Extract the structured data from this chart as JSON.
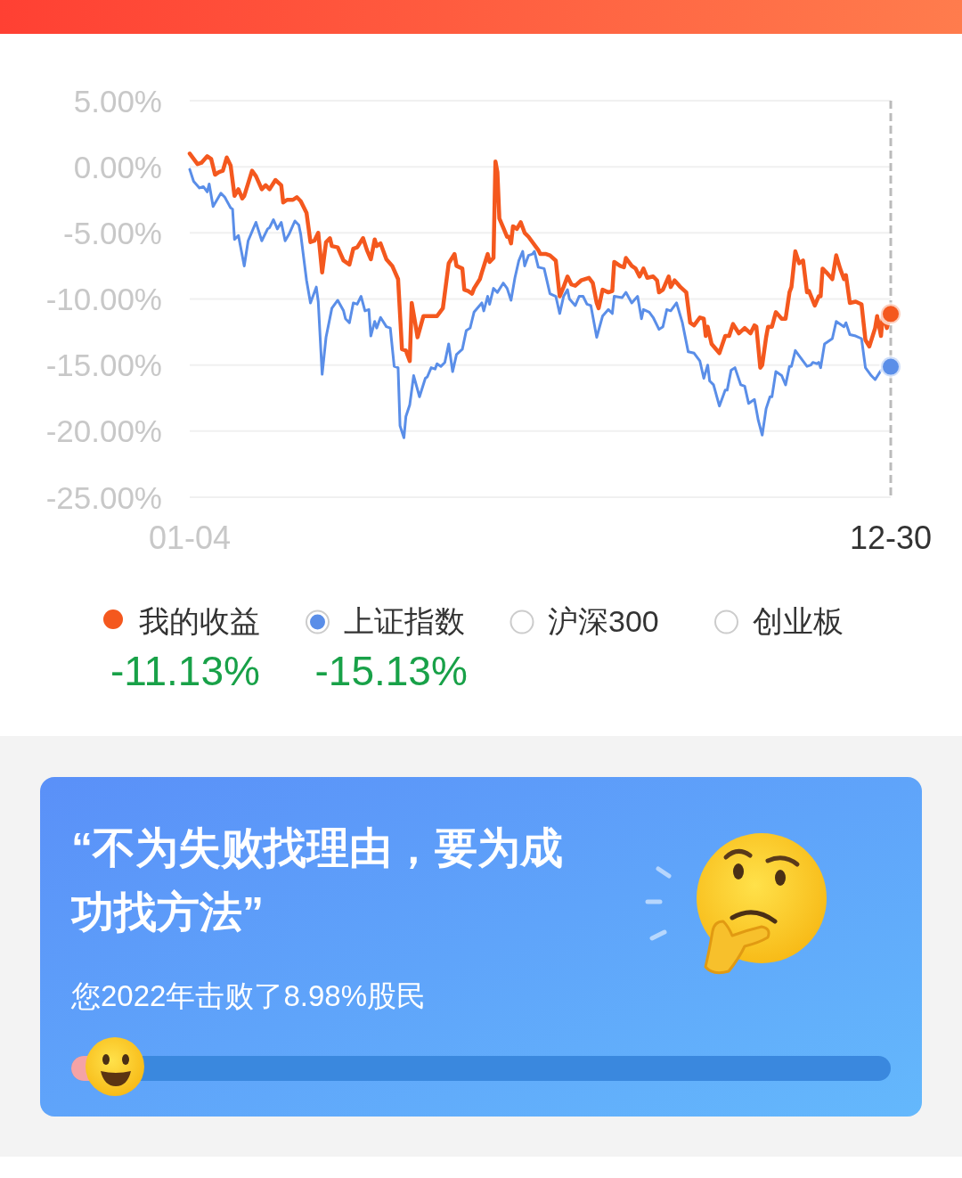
{
  "chart_data": {
    "type": "line",
    "xlim": [
      "--01-04",
      "--12-30"
    ],
    "xticks": [
      {
        "value": "--01-04",
        "label": "01-04"
      },
      {
        "value": "--12-30",
        "label": "12-30"
      }
    ],
    "ylim": [
      -25,
      5
    ],
    "yticks": [
      {
        "value": 5,
        "label": "5.00%"
      },
      {
        "value": 0,
        "label": "0.00%"
      },
      {
        "value": -5,
        "label": "-5.00%"
      },
      {
        "value": -10,
        "label": "-10.00%"
      },
      {
        "value": -15,
        "label": "-15.00%"
      },
      {
        "value": -20,
        "label": "-20.00%"
      },
      {
        "value": -25,
        "label": "-25.00%"
      }
    ],
    "grid": "y",
    "legend": "bottom",
    "ref_lines": [
      {
        "axis": "x",
        "value": "--12-30",
        "line_style": "dashed",
        "color": "#bbbbbb"
      }
    ],
    "series": [
      {
        "name": "我的收益",
        "color": "#f4581e",
        "x": [
          "--01-04",
          "--01-08",
          "--01-10",
          "--01-13",
          "--01-15",
          "--01-17",
          "--01-19",
          "--01-21",
          "--01-23",
          "--01-25",
          "--01-27",
          "--01-29",
          "--01-31",
          "--02-01",
          "--02-05",
          "--02-07",
          "--02-10",
          "--02-12",
          "--02-14",
          "--02-17",
          "--02-20",
          "--02-21",
          "--02-23",
          "--02-26",
          "--02-28",
          "--03-02",
          "--03-05",
          "--03-07",
          "--03-09",
          "--03-11",
          "--03-13",
          "--03-15",
          "--03-17",
          "--03-18",
          "--03-21",
          "--03-24",
          "--03-27",
          "--03-29",
          "--03-31",
          "--04-03",
          "--04-05",
          "--04-07",
          "--04-09",
          "--04-10",
          "--04-12",
          "--04-15",
          "--04-18",
          "--04-21",
          "--04-23",
          "--04-25",
          "--04-27",
          "--04-28",
          "--04-30",
          "--05-01",
          "--05-04",
          "--05-06",
          "--05-11",
          "--05-14",
          "--05-17",
          "--05-20",
          "--05-21",
          "--05-24",
          "--05-25",
          "--05-27",
          "--05-29",
          "--05-30",
          "--06-02",
          "--06-03",
          "--06-06",
          "--06-07",
          "--06-09",
          "--06-10",
          "--06-11",
          "--06-12",
          "--06-14",
          "--06-16",
          "--06-17",
          "--06-18",
          "--06-19",
          "--06-21",
          "--06-23",
          "--06-25",
          "--06-27",
          "--06-29",
          "--07-02",
          "--07-03",
          "--07-06",
          "--07-08",
          "--07-11",
          "--07-13",
          "--07-15",
          "--07-17",
          "--07-19",
          "--07-21",
          "--07-24",
          "--07-28",
          "--07-30",
          "--08-01",
          "--08-02",
          "--08-04",
          "--08-07",
          "--08-09",
          "--08-10",
          "--08-13",
          "--08-15",
          "--08-16",
          "--08-19",
          "--08-21",
          "--08-23",
          "--08-25",
          "--08-27",
          "--08-30",
          "--09-01",
          "--09-02",
          "--09-04",
          "--09-07",
          "--09-08",
          "--09-10",
          "--09-13",
          "--09-16",
          "--09-18",
          "--09-20",
          "--09-23",
          "--09-25",
          "--09-26",
          "--09-27",
          "--09-29",
          "--10-03",
          "--10-06",
          "--10-08",
          "--10-10",
          "--10-13",
          "--10-16",
          "--10-19",
          "--10-21",
          "--10-22",
          "--10-24",
          "--10-25",
          "--10-27",
          "--10-28",
          "--10-30",
          "--11-01",
          "--11-04",
          "--11-06",
          "--11-08",
          "--11-09",
          "--11-11",
          "--11-13",
          "--11-15",
          "--11-17",
          "--11-18",
          "--11-21",
          "--11-23",
          "--11-24",
          "--11-25",
          "--11-27",
          "--11-30",
          "--12-02",
          "--12-04",
          "--12-06",
          "--12-07",
          "--12-09",
          "--12-12",
          "--12-15",
          "--12-17",
          "--12-19",
          "--12-22",
          "--12-23",
          "--12-25",
          "--12-26",
          "--12-28",
          "--12-30"
        ],
        "values": [
          1.0,
          0.2,
          0.3,
          0.8,
          0.6,
          -0.6,
          -0.4,
          -0.3,
          0.7,
          0.1,
          -2.2,
          -1.7,
          -2.4,
          -2.2,
          -0.3,
          -0.7,
          -1.7,
          -1.4,
          -1.7,
          -1.0,
          -1.4,
          -2.7,
          -2.5,
          -2.5,
          -2.3,
          -2.6,
          -3.5,
          -5.7,
          -5.6,
          -5.0,
          -8.0,
          -5.7,
          -5.4,
          -6.0,
          -6.1,
          -7.1,
          -7.4,
          -6.2,
          -6.1,
          -5.4,
          -6.3,
          -7.0,
          -5.5,
          -6.0,
          -5.8,
          -7.0,
          -7.5,
          -8.5,
          -13.8,
          -13.9,
          -14.7,
          -10.3,
          -12.0,
          -12.9,
          -11.3,
          -11.3,
          -11.3,
          -10.7,
          -7.3,
          -6.6,
          -7.5,
          -7.7,
          -9.3,
          -9.4,
          -9.6,
          -9.2,
          -8.5,
          -8.0,
          -6.6,
          -7.2,
          -6.9,
          0.4,
          -0.4,
          -3.9,
          -4.6,
          -5.3,
          -5.3,
          -5.8,
          -4.5,
          -4.7,
          -4.2,
          -5.0,
          -5.3,
          -5.7,
          -6.3,
          -6.6,
          -6.6,
          -6.7,
          -7.1,
          -9.8,
          -9.1,
          -8.3,
          -8.9,
          -9.0,
          -8.6,
          -8.4,
          -8.8,
          -10.3,
          -10.7,
          -9.3,
          -9.5,
          -9.4,
          -7.2,
          -7.5,
          -7.6,
          -6.9,
          -7.5,
          -7.7,
          -8.3,
          -7.7,
          -8.4,
          -8.3,
          -8.6,
          -9.5,
          -9.3,
          -8.3,
          -9.1,
          -8.6,
          -9.1,
          -9.5,
          -11.8,
          -12.0,
          -11.4,
          -11.5,
          -12.8,
          -12.1,
          -13.4,
          -14.1,
          -12.8,
          -12.8,
          -11.9,
          -12.6,
          -12.2,
          -12.6,
          -12.0,
          -12.1,
          -15.2,
          -15.0,
          -12.9,
          -12.1,
          -12.1,
          -11.0,
          -11.5,
          -11.5,
          -9.5,
          -9.1,
          -6.4,
          -7.3,
          -7.1,
          -9.5,
          -9.4,
          -10.5,
          -9.8,
          -9.8,
          -7.7,
          -8.0,
          -8.5,
          -6.7,
          -7.7,
          -8.5,
          -8.2,
          -10.3,
          -10.2,
          -10.4,
          -13.1,
          -13.6,
          -12.2,
          -11.3,
          -12.8,
          -11.1,
          -12.2,
          -11.13
        ]
      },
      {
        "name": "上证指数",
        "color": "#5a8ee8",
        "x": [
          "--01-04",
          "--01-06",
          "--01-09",
          "--01-11",
          "--01-13",
          "--01-14",
          "--01-16",
          "--01-20",
          "--01-22",
          "--01-25",
          "--01-26",
          "--01-27",
          "--01-29",
          "--02-01",
          "--02-03",
          "--02-07",
          "--02-10",
          "--02-13",
          "--02-14",
          "--02-16",
          "--02-18",
          "--02-20",
          "--02-22",
          "--02-24",
          "--02-27",
          "--03-01",
          "--03-02",
          "--03-05",
          "--03-07",
          "--03-10",
          "--03-11",
          "--03-13",
          "--03-15",
          "--03-18",
          "--03-21",
          "--03-24",
          "--03-25",
          "--03-27",
          "--03-29",
          "--03-31",
          "--04-02",
          "--04-04",
          "--04-06",
          "--04-07",
          "--04-09",
          "--04-10",
          "--04-12",
          "--04-15",
          "--04-17",
          "--04-19",
          "--04-21",
          "--04-22",
          "--04-24",
          "--04-25",
          "--04-27",
          "--04-29",
          "--05-02",
          "--05-05",
          "--05-06",
          "--05-08",
          "--05-10",
          "--05-11",
          "--05-13",
          "--05-15",
          "--05-17",
          "--05-19",
          "--05-21",
          "--05-24",
          "--05-26",
          "--05-28",
          "--05-30",
          "--06-03",
          "--06-04",
          "--06-06",
          "--06-07",
          "--06-09",
          "--06-11",
          "--06-14",
          "--06-16",
          "--06-18",
          "--06-20",
          "--06-22",
          "--06-24",
          "--06-25",
          "--06-27",
          "--06-29",
          "--06-30",
          "--07-02",
          "--07-05",
          "--07-08",
          "--07-11",
          "--07-13",
          "--07-15",
          "--07-17",
          "--07-18",
          "--07-21",
          "--07-23",
          "--07-25",
          "--07-27",
          "--07-29",
          "--08-01",
          "--08-04",
          "--08-07",
          "--08-09",
          "--08-10",
          "--08-14",
          "--08-16",
          "--08-19",
          "--08-22",
          "--08-24",
          "--08-25",
          "--08-28",
          "--08-30",
          "--09-02",
          "--09-04",
          "--09-06",
          "--09-08",
          "--09-11",
          "--09-14",
          "--09-17",
          "--09-20",
          "--09-23",
          "--09-25",
          "--09-27",
          "--09-28",
          "--09-30",
          "--10-03",
          "--10-06",
          "--10-07",
          "--10-09",
          "--10-11",
          "--10-14",
          "--10-16",
          "--10-18",
          "--10-21",
          "--10-23",
          "--10-25",
          "--10-27",
          "--10-29",
          "--10-30",
          "--11-01",
          "--11-04",
          "--11-06",
          "--11-08",
          "--11-09",
          "--11-11",
          "--11-13",
          "--11-17",
          "--11-19",
          "--11-20",
          "--11-22",
          "--11-23",
          "--11-24",
          "--11-26",
          "--11-28",
          "--11-30",
          "--12-02",
          "--12-04",
          "--12-06",
          "--12-07",
          "--12-09",
          "--12-12",
          "--12-15",
          "--12-17",
          "--12-20",
          "--12-22",
          "--12-25",
          "--12-30"
        ],
        "values": [
          -0.2,
          -1.1,
          -1.6,
          -1.5,
          -1.9,
          -1.3,
          -3.0,
          -2.0,
          -2.3,
          -3.1,
          -3.2,
          -5.5,
          -5.2,
          -7.5,
          -5.6,
          -4.2,
          -5.6,
          -4.7,
          -4.6,
          -4.0,
          -4.7,
          -4.2,
          -5.6,
          -5.1,
          -4.1,
          -4.4,
          -5.1,
          -8.6,
          -10.3,
          -9.1,
          -10.2,
          -15.7,
          -12.9,
          -10.7,
          -10.1,
          -10.9,
          -11.5,
          -11.8,
          -10.3,
          -10.4,
          -9.8,
          -10.9,
          -10.8,
          -12.8,
          -11.7,
          -12.2,
          -11.4,
          -12.1,
          -12.2,
          -15.1,
          -15.2,
          -19.6,
          -20.5,
          -18.9,
          -18.0,
          -15.8,
          -17.4,
          -16.0,
          -15.9,
          -15.2,
          -15.3,
          -14.9,
          -15.1,
          -14.8,
          -13.4,
          -15.5,
          -14.2,
          -13.8,
          -12.4,
          -12.2,
          -11.0,
          -10.3,
          -10.9,
          -9.8,
          -10.4,
          -9.2,
          -9.5,
          -8.8,
          -9.2,
          -10.1,
          -8.4,
          -7.1,
          -6.4,
          -7.5,
          -6.7,
          -6.6,
          -6.4,
          -7.6,
          -7.7,
          -9.6,
          -9.8,
          -11.1,
          -9.8,
          -9.3,
          -10.0,
          -10.5,
          -9.8,
          -9.8,
          -10.4,
          -10.5,
          -12.9,
          -11.3,
          -10.8,
          -11.1,
          -9.8,
          -9.9,
          -9.5,
          -10.3,
          -9.8,
          -11.5,
          -10.8,
          -11.0,
          -11.4,
          -12.3,
          -12.1,
          -10.8,
          -10.9,
          -10.3,
          -11.8,
          -14.0,
          -14.1,
          -14.7,
          -16.0,
          -15.0,
          -16.2,
          -16.5,
          -18.1,
          -16.9,
          -16.9,
          -15.4,
          -15.2,
          -16.5,
          -16.6,
          -17.9,
          -17.6,
          -19.2,
          -20.3,
          -18.3,
          -17.4,
          -17.4,
          -15.5,
          -15.8,
          -16.5,
          -15.1,
          -15.1,
          -13.9,
          -14.3,
          -15.1,
          -15.0,
          -14.8,
          -14.9,
          -14.8,
          -15.2,
          -13.4,
          -13.2,
          -13.0,
          -11.7,
          -11.9,
          -12.1,
          -11.8,
          -12.7,
          -12.8,
          -13.0,
          -15.2,
          -15.8,
          -16.1,
          -15.4,
          -15.13
        ]
      }
    ],
    "annotations": [
      "-11.13%",
      "-15.13%",
      "沪深300",
      "创业板",
      "“不为失败找理由，要为成功找方法”",
      "您2022年击败了8.98%股民"
    ]
  }
}
